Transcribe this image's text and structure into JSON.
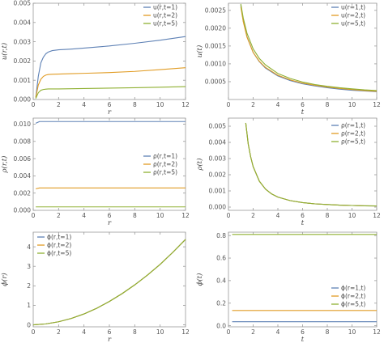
{
  "colors": {
    "s1": "#5e81b5",
    "s2": "#e19c24",
    "s3": "#8fb032"
  },
  "chart_data": [
    {
      "id": "p1",
      "type": "line",
      "xlabel": "r",
      "ylabel": "u(r,t)",
      "xlim": [
        0,
        12
      ],
      "ylim": [
        0,
        0.005
      ],
      "xticks": [
        0,
        2,
        4,
        6,
        8,
        10,
        12
      ],
      "xtick_labels": [
        "0",
        "2",
        "4",
        "6",
        "8",
        "10",
        "12"
      ],
      "yticks": [
        0,
        0.001,
        0.002,
        0.003,
        0.004,
        0.005
      ],
      "ytick_labels": [
        "0.000",
        "0.001",
        "0.002",
        "0.003",
        "0.004",
        "0.005"
      ],
      "legend": "top-right",
      "series": [
        {
          "name": "u(r,t=1)",
          "color_key": "s1",
          "x": [
            0.2,
            0.4,
            0.6,
            0.8,
            1.0,
            1.2,
            1.5,
            2,
            3,
            4,
            6,
            8,
            10,
            12
          ],
          "y": [
            0.0001,
            0.0012,
            0.0019,
            0.0022,
            0.00238,
            0.00247,
            0.00254,
            0.00258,
            0.00262,
            0.00267,
            0.00278,
            0.00292,
            0.00308,
            0.00327
          ]
        },
        {
          "name": "u(r,t=2)",
          "color_key": "s2",
          "x": [
            0.2,
            0.4,
            0.6,
            0.8,
            1.0,
            1.2,
            1.5,
            2,
            3,
            4,
            6,
            8,
            10,
            12
          ],
          "y": [
            0.0001,
            0.00075,
            0.00105,
            0.0012,
            0.00127,
            0.0013,
            0.00131,
            0.00132,
            0.00134,
            0.00136,
            0.0014,
            0.00146,
            0.00155,
            0.00165
          ]
        },
        {
          "name": "u(r,t=5)",
          "color_key": "s3",
          "x": [
            0.2,
            0.4,
            0.6,
            0.8,
            1.0,
            1.2,
            1.5,
            2,
            3,
            4,
            6,
            8,
            10,
            12
          ],
          "y": [
            5e-05,
            0.00035,
            0.00048,
            0.00052,
            0.00054,
            0.00055,
            0.00055,
            0.00055,
            0.00056,
            0.00057,
            0.00059,
            0.00061,
            0.00064,
            0.00067
          ]
        }
      ]
    },
    {
      "id": "p2",
      "type": "line",
      "xlabel": "t",
      "ylabel": "u(t)",
      "xlim": [
        0,
        12
      ],
      "ylim": [
        0,
        0.0027
      ],
      "xticks": [
        0,
        2,
        4,
        6,
        8,
        10,
        12
      ],
      "xtick_labels": [
        "0",
        "2",
        "4",
        "6",
        "8",
        "10",
        "12"
      ],
      "yticks": [
        0.0005,
        0.001,
        0.0015,
        0.002,
        0.0025
      ],
      "ytick_labels": [
        "0.0005",
        "0.0010",
        "0.0015",
        "0.0020",
        "0.0025"
      ],
      "legend": "top-right",
      "series": [
        {
          "name": "u(r=1,t)",
          "color_key": "s1",
          "x": [
            1,
            1.2,
            1.5,
            2,
            2.5,
            3,
            4,
            5,
            6,
            7,
            8,
            9,
            10,
            11,
            12
          ],
          "y": [
            0.00265,
            0.0022,
            0.00176,
            0.00132,
            0.00106,
            0.00088,
            0.00066,
            0.00053,
            0.00044,
            0.00038,
            0.00033,
            0.00029,
            0.00026,
            0.00024,
            0.00022
          ]
        },
        {
          "name": "u(r=2,t)",
          "color_key": "s2",
          "x": [
            1,
            1.2,
            1.5,
            2,
            2.5,
            3,
            4,
            5,
            6,
            7,
            8,
            9,
            10,
            11,
            12
          ],
          "y": [
            0.0026,
            0.00218,
            0.00175,
            0.00132,
            0.00107,
            0.0009,
            0.00068,
            0.00055,
            0.00046,
            0.0004,
            0.00035,
            0.00031,
            0.00028,
            0.00025,
            0.00023
          ]
        },
        {
          "name": "u(r=5,t)",
          "color_key": "s3",
          "x": [
            1,
            1.2,
            1.5,
            2,
            2.5,
            3,
            4,
            5,
            6,
            7,
            8,
            9,
            10,
            11,
            12
          ],
          "y": [
            0.00268,
            0.00228,
            0.00186,
            0.00142,
            0.00115,
            0.00097,
            0.00073,
            0.00059,
            0.00049,
            0.00042,
            0.00037,
            0.00033,
            0.0003,
            0.00027,
            0.00025
          ]
        }
      ]
    },
    {
      "id": "p3",
      "type": "line",
      "xlabel": "r",
      "ylabel": "ρ(r,t)",
      "xlim": [
        0,
        12
      ],
      "ylim": [
        0,
        0.0107
      ],
      "xticks": [
        0,
        2,
        4,
        6,
        8,
        10,
        12
      ],
      "xtick_labels": [
        "0",
        "2",
        "4",
        "6",
        "8",
        "10",
        "12"
      ],
      "yticks": [
        0,
        0.002,
        0.004,
        0.006,
        0.008,
        0.01
      ],
      "ytick_labels": [
        "0.000",
        "0.002",
        "0.004",
        "0.006",
        "0.008",
        "0.010"
      ],
      "legend": "right",
      "series": [
        {
          "name": "ρ(r,t=1)",
          "color_key": "s1",
          "x": [
            0.2,
            0.5,
            1,
            2,
            4,
            6,
            8,
            10,
            12
          ],
          "y": [
            0.0101,
            0.0103,
            0.0103,
            0.0103,
            0.0103,
            0.0103,
            0.0103,
            0.0103,
            0.0103
          ]
        },
        {
          "name": "ρ(r,t=2)",
          "color_key": "s2",
          "x": [
            0.2,
            0.5,
            1,
            2,
            4,
            6,
            8,
            10,
            12
          ],
          "y": [
            0.0025,
            0.0026,
            0.0026,
            0.0026,
            0.0026,
            0.0026,
            0.0026,
            0.0026,
            0.0026
          ]
        },
        {
          "name": "ρ(r,t=5)",
          "color_key": "s3",
          "x": [
            0.2,
            0.5,
            1,
            2,
            4,
            6,
            8,
            10,
            12
          ],
          "y": [
            0.0004,
            0.0004,
            0.0004,
            0.0004,
            0.0004,
            0.0004,
            0.0004,
            0.0004,
            0.0004
          ]
        }
      ]
    },
    {
      "id": "p4",
      "type": "line",
      "xlabel": "t",
      "ylabel": "ρ(t)",
      "xlim": [
        0,
        12
      ],
      "ylim": [
        -0.0002,
        0.0055
      ],
      "xticks": [
        0,
        2,
        4,
        6,
        8,
        10,
        12
      ],
      "xtick_labels": [
        "0",
        "2",
        "4",
        "6",
        "8",
        "10",
        "12"
      ],
      "yticks": [
        0,
        0.001,
        0.002,
        0.003,
        0.004,
        0.005
      ],
      "ytick_labels": [
        "0.000",
        "0.001",
        "0.002",
        "0.003",
        "0.004",
        "0.005"
      ],
      "legend": "top-right",
      "series": [
        {
          "name": "ρ(r=1,t)",
          "color_key": "s1",
          "x": [
            1.4,
            1.6,
            1.8,
            2,
            2.5,
            3,
            3.5,
            4,
            5,
            6,
            7,
            8,
            9,
            10,
            11,
            12
          ],
          "y": [
            0.0052,
            0.0039,
            0.0031,
            0.0025,
            0.0016,
            0.00111,
            0.00081,
            0.00062,
            0.0004,
            0.00028,
            0.0002,
            0.00016,
            0.00012,
            0.0001,
            8e-05,
            7e-05
          ]
        },
        {
          "name": "ρ(r=2,t)",
          "color_key": "s2",
          "x": [
            1.4,
            1.6,
            1.8,
            2,
            2.5,
            3,
            3.5,
            4,
            5,
            6,
            7,
            8,
            9,
            10,
            11,
            12
          ],
          "y": [
            0.0052,
            0.0039,
            0.0031,
            0.0025,
            0.0016,
            0.00111,
            0.00081,
            0.00062,
            0.0004,
            0.00028,
            0.0002,
            0.00016,
            0.00012,
            0.0001,
            8e-05,
            7e-05
          ]
        },
        {
          "name": "ρ(r=5,t)",
          "color_key": "s3",
          "x": [
            1.4,
            1.6,
            1.8,
            2,
            2.5,
            3,
            3.5,
            4,
            5,
            6,
            7,
            8,
            9,
            10,
            11,
            12
          ],
          "y": [
            0.0052,
            0.0039,
            0.0031,
            0.0025,
            0.0016,
            0.00111,
            0.00081,
            0.00062,
            0.0004,
            0.00028,
            0.0002,
            0.00016,
            0.00012,
            0.0001,
            8e-05,
            7e-05
          ]
        }
      ]
    },
    {
      "id": "p5",
      "type": "line",
      "xlabel": "r",
      "ylabel": "ϕ(r)",
      "xlim": [
        0,
        12
      ],
      "ylim": [
        -0.1,
        4.75
      ],
      "xticks": [
        0,
        2,
        4,
        6,
        8,
        10,
        12
      ],
      "xtick_labels": [
        "0",
        "2",
        "4",
        "6",
        "8",
        "10",
        "12"
      ],
      "yticks": [
        0,
        1,
        2,
        3,
        4
      ],
      "ytick_labels": [
        "0",
        "1",
        "2",
        "3",
        "4"
      ],
      "legend": "top-left",
      "series": [
        {
          "name": "ϕ(r,t=1)",
          "color_key": "s1",
          "x": [
            0,
            1,
            2,
            3,
            4,
            5,
            6,
            7,
            8,
            9,
            10,
            11,
            12
          ],
          "y": [
            0,
            0.05,
            0.16,
            0.33,
            0.56,
            0.85,
            1.2,
            1.6,
            2.05,
            2.55,
            3.1,
            3.72,
            4.38
          ]
        },
        {
          "name": "ϕ(r,t=2)",
          "color_key": "s2",
          "x": [
            0,
            1,
            2,
            3,
            4,
            5,
            6,
            7,
            8,
            9,
            10,
            11,
            12
          ],
          "y": [
            0,
            0.05,
            0.16,
            0.33,
            0.56,
            0.85,
            1.2,
            1.6,
            2.05,
            2.55,
            3.1,
            3.72,
            4.38
          ]
        },
        {
          "name": "ϕ(r,t=5)",
          "color_key": "s3",
          "x": [
            0,
            1,
            2,
            3,
            4,
            5,
            6,
            7,
            8,
            9,
            10,
            11,
            12
          ],
          "y": [
            0,
            0.05,
            0.16,
            0.33,
            0.56,
            0.85,
            1.2,
            1.6,
            2.05,
            2.55,
            3.1,
            3.72,
            4.38
          ]
        }
      ]
    },
    {
      "id": "p6",
      "type": "line",
      "xlabel": "t",
      "ylabel": "ϕ(t)",
      "xlim": [
        0,
        12
      ],
      "ylim": [
        -0.01,
        0.83
      ],
      "xticks": [
        0,
        2,
        4,
        6,
        8,
        10,
        12
      ],
      "xtick_labels": [
        "0",
        "2",
        "4",
        "6",
        "8",
        "10",
        "12"
      ],
      "yticks": [
        0,
        0.2,
        0.4,
        0.6,
        0.8
      ],
      "ytick_labels": [
        "0.0",
        "0.2",
        "0.4",
        "0.6",
        "0.8"
      ],
      "legend": "right",
      "series": [
        {
          "name": "ϕ(r=1,t)",
          "color_key": "s1",
          "x": [
            0.3,
            12
          ],
          "y": [
            0.035,
            0.035
          ]
        },
        {
          "name": "ϕ(r=2,t)",
          "color_key": "s2",
          "x": [
            0.3,
            12
          ],
          "y": [
            0.135,
            0.135
          ]
        },
        {
          "name": "ϕ(r=5,t)",
          "color_key": "s3",
          "x": [
            0.3,
            12
          ],
          "y": [
            0.81,
            0.81
          ]
        }
      ]
    }
  ]
}
